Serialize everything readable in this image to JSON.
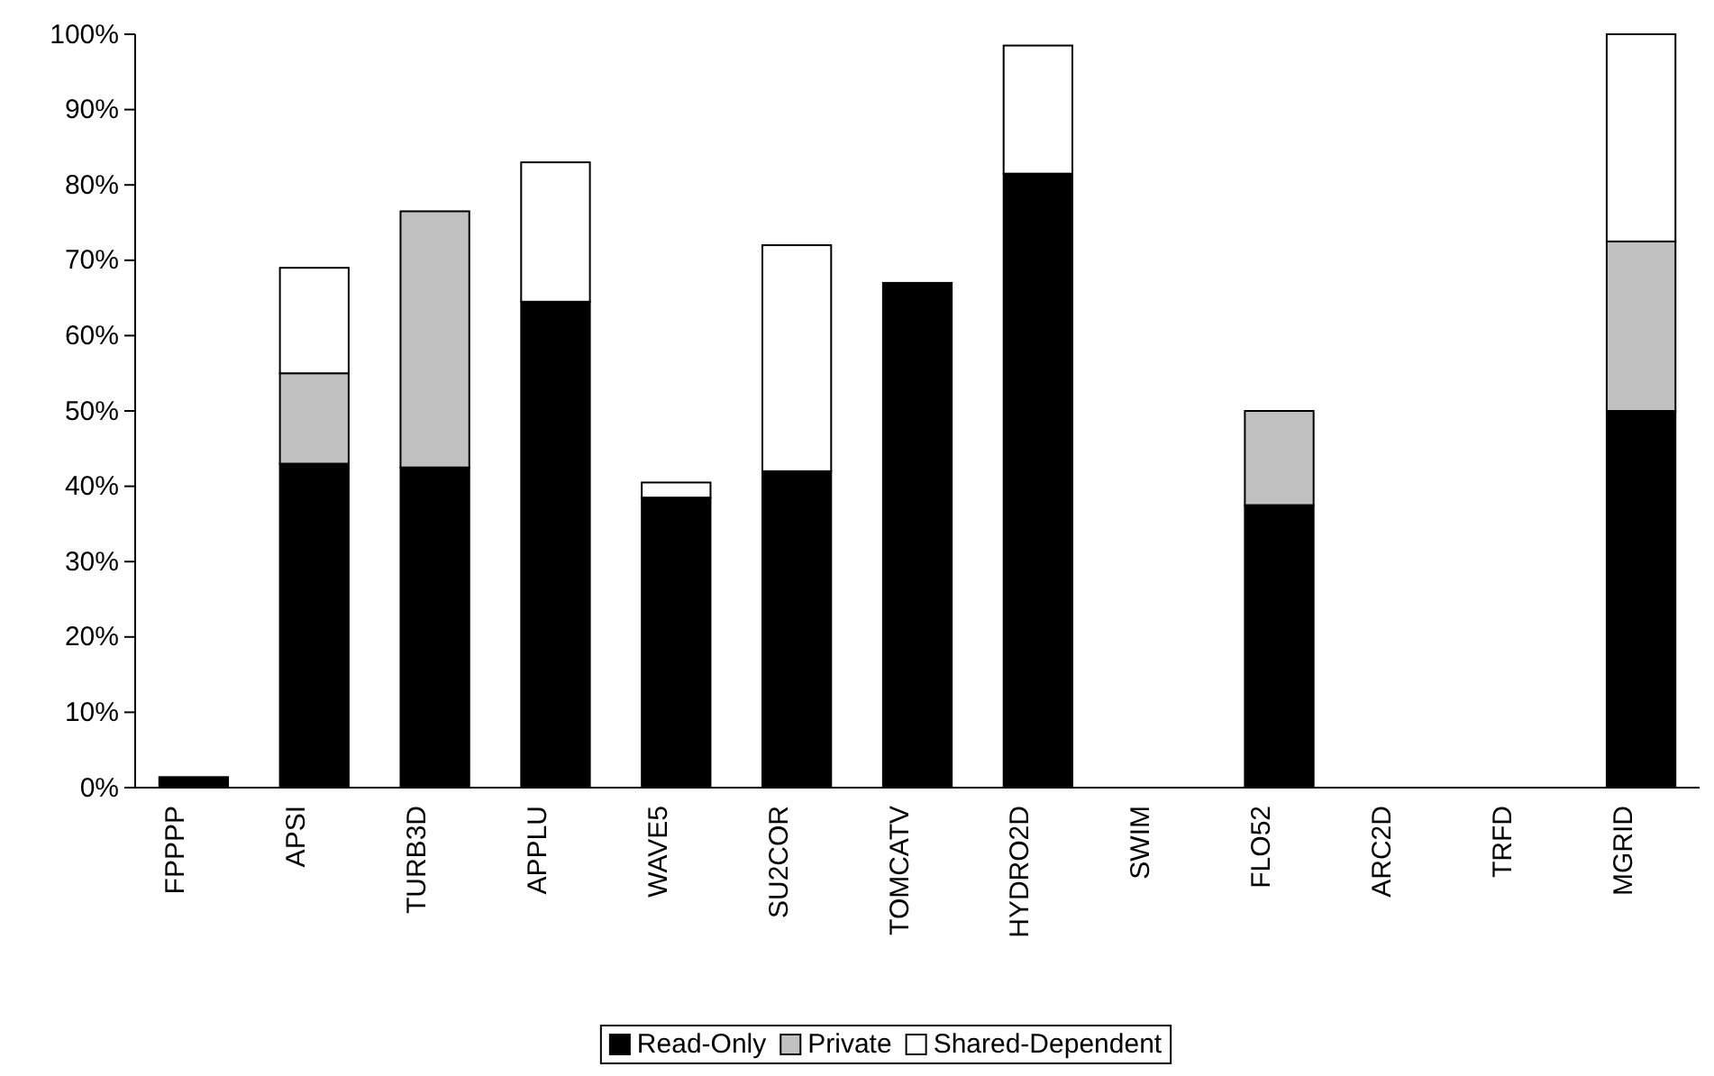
{
  "chart_data": {
    "type": "bar",
    "stacked": true,
    "categories": [
      "FPPPP",
      "APSI",
      "TURB3D",
      "APPLU",
      "WAVE5",
      "SU2COR",
      "TOMCATV",
      "HYDRO2D",
      "SWIM",
      "FLO52",
      "ARC2D",
      "TRFD",
      "MGRID"
    ],
    "series": [
      {
        "name": "Read-Only",
        "color": "#000000",
        "values": [
          1.4,
          43,
          42.5,
          64.5,
          38.5,
          42,
          67,
          81.5,
          0,
          37.5,
          0,
          0,
          50
        ]
      },
      {
        "name": "Private",
        "color": "#c0c0c0",
        "values": [
          0,
          12,
          34,
          0,
          0,
          0,
          0,
          0,
          0,
          12.5,
          0,
          0,
          22.5
        ]
      },
      {
        "name": "Shared-Dependent",
        "color": "#ffffff",
        "values": [
          0,
          14,
          0,
          18.5,
          2,
          30,
          0,
          17,
          0,
          0,
          0,
          0,
          27.5
        ]
      }
    ],
    "ylim": [
      0,
      100
    ],
    "yticks": [
      {
        "value": 0,
        "label": "0%"
      },
      {
        "value": 10,
        "label": "10%"
      },
      {
        "value": 20,
        "label": "20%"
      },
      {
        "value": 30,
        "label": "30%"
      },
      {
        "value": 40,
        "label": "40%"
      },
      {
        "value": 50,
        "label": "50%"
      },
      {
        "value": 60,
        "label": "60%"
      },
      {
        "value": 70,
        "label": "70%"
      },
      {
        "value": 80,
        "label": "80%"
      },
      {
        "value": 90,
        "label": "90%"
      },
      {
        "value": 100,
        "label": "100%"
      }
    ],
    "grid": false,
    "legend": "bottom"
  }
}
